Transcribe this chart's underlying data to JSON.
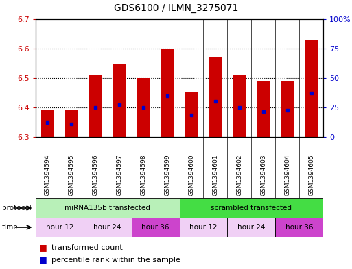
{
  "title": "GDS6100 / ILMN_3275071",
  "samples": [
    "GSM1394594",
    "GSM1394595",
    "GSM1394596",
    "GSM1394597",
    "GSM1394598",
    "GSM1394599",
    "GSM1394600",
    "GSM1394601",
    "GSM1394602",
    "GSM1394603",
    "GSM1394604",
    "GSM1394605"
  ],
  "bar_tops": [
    6.39,
    6.39,
    6.51,
    6.55,
    6.5,
    6.6,
    6.45,
    6.57,
    6.51,
    6.49,
    6.49,
    6.63
  ],
  "bar_bottoms": [
    6.3,
    6.3,
    6.3,
    6.3,
    6.3,
    6.3,
    6.3,
    6.3,
    6.3,
    6.3,
    6.3,
    6.3
  ],
  "blue_dot_values": [
    6.35,
    6.345,
    6.4,
    6.41,
    6.4,
    6.44,
    6.375,
    6.42,
    6.4,
    6.385,
    6.39,
    6.45
  ],
  "ylim_left": [
    6.3,
    6.7
  ],
  "ylim_right": [
    0,
    100
  ],
  "yticks_left": [
    6.3,
    6.4,
    6.5,
    6.6,
    6.7
  ],
  "yticks_right": [
    0,
    25,
    50,
    75,
    100
  ],
  "ytick_labels_right": [
    "0",
    "25",
    "50",
    "75",
    "100%"
  ],
  "bar_color": "#cc0000",
  "dot_color": "#0000cc",
  "bar_width": 0.55,
  "grid_color": "#000000",
  "protocol_labels": [
    "miRNA135b transfected",
    "scrambled transfected"
  ],
  "protocol_color_left": "#b8f0b8",
  "protocol_color_right": "#44dd44",
  "time_colors": [
    "#f0d0f5",
    "#f0d0f5",
    "#cc44cc",
    "#f0d0f5",
    "#f0d0f5",
    "#cc44cc"
  ],
  "time_labels": [
    "hour 12",
    "hour 24",
    "hour 36",
    "hour 12",
    "hour 24",
    "hour 36"
  ],
  "bg_color": "#ffffff",
  "label_color_left": "#cc0000",
  "label_color_right": "#0000cc",
  "legend_red_label": "transformed count",
  "legend_blue_label": "percentile rank within the sample",
  "grid_yticks": [
    6.4,
    6.5,
    6.6
  ]
}
